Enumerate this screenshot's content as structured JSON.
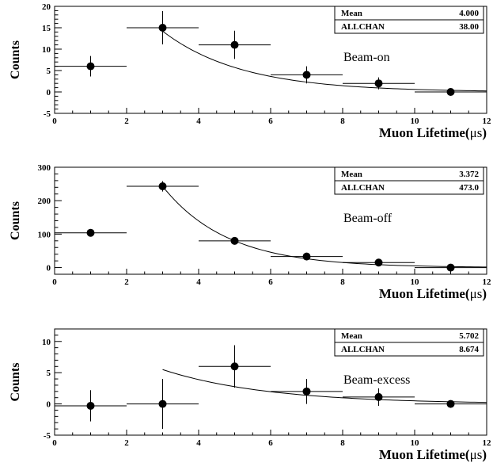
{
  "chart_data": [
    {
      "type": "scatter",
      "panel_label": "Beam-on",
      "xlabel_main": "Muon Lifetime(",
      "xlabel_unit": "μs",
      "xlabel_close": ")",
      "ylabel": "Counts",
      "xlim": [
        0,
        12
      ],
      "ylim": [
        -5,
        20
      ],
      "xticks": [
        0,
        2,
        4,
        6,
        8,
        10,
        12
      ],
      "yticks": [
        -5,
        0,
        5,
        10,
        15,
        20
      ],
      "stats": [
        {
          "name": "Mean",
          "value": "4.000"
        },
        {
          "name": "ALLCHAN",
          "value": "38.00"
        }
      ],
      "points": [
        {
          "x": 1,
          "y": 6,
          "xerr": 1,
          "yerr": 2.4
        },
        {
          "x": 3,
          "y": 15,
          "xerr": 1,
          "yerr": 3.9
        },
        {
          "x": 5,
          "y": 11,
          "xerr": 1,
          "yerr": 3.3
        },
        {
          "x": 7,
          "y": 4,
          "xerr": 1,
          "yerr": 2
        },
        {
          "x": 9,
          "y": 2,
          "xerr": 1,
          "yerr": 1.4
        },
        {
          "x": 11,
          "y": 0,
          "xerr": 1,
          "yerr": 0
        }
      ],
      "fit": {
        "type": "exponential",
        "x_start": 3,
        "x_end": 12,
        "amplitude": 14.2,
        "tau": 2.2
      }
    },
    {
      "type": "scatter",
      "panel_label": "Beam-off",
      "xlabel_main": "Muon Lifetime(",
      "xlabel_unit": "μs",
      "xlabel_close": ")",
      "ylabel": "Counts",
      "xlim": [
        0,
        12
      ],
      "ylim": [
        -20,
        300
      ],
      "xticks": [
        0,
        2,
        4,
        6,
        8,
        10,
        12
      ],
      "yticks": [
        0,
        100,
        200,
        300
      ],
      "stats": [
        {
          "name": "Mean",
          "value": "3.372"
        },
        {
          "name": "ALLCHAN",
          "value": "473.0"
        }
      ],
      "points": [
        {
          "x": 1,
          "y": 104,
          "xerr": 1,
          "yerr": 10
        },
        {
          "x": 3,
          "y": 243,
          "xerr": 1,
          "yerr": 15.6
        },
        {
          "x": 5,
          "y": 80,
          "xerr": 1,
          "yerr": 9
        },
        {
          "x": 7,
          "y": 33,
          "xerr": 1,
          "yerr": 5.7
        },
        {
          "x": 9,
          "y": 15,
          "xerr": 1,
          "yerr": 3.9
        },
        {
          "x": 11,
          "y": 0,
          "xerr": 1,
          "yerr": 0
        }
      ],
      "fit": {
        "type": "exponential",
        "x_start": 3,
        "x_end": 12,
        "amplitude": 243,
        "tau": 1.8
      }
    },
    {
      "type": "scatter",
      "panel_label": "Beam-excess",
      "xlabel_main": "Muon Lifetime(",
      "xlabel_unit": "μs",
      "xlabel_close": ")",
      "ylabel": "Counts",
      "xlim": [
        0,
        12
      ],
      "ylim": [
        -5,
        12
      ],
      "xticks": [
        0,
        2,
        4,
        6,
        8,
        10,
        12
      ],
      "yticks": [
        -5,
        0,
        5,
        10
      ],
      "stats": [
        {
          "name": "Mean",
          "value": "5.702"
        },
        {
          "name": "ALLCHAN",
          "value": "8.674"
        }
      ],
      "points": [
        {
          "x": 1,
          "y": -0.3,
          "xerr": 1,
          "yerr": 2.5
        },
        {
          "x": 3,
          "y": 0,
          "xerr": 1,
          "yerr": 4
        },
        {
          "x": 5,
          "y": 6,
          "xerr": 1,
          "yerr": 3.4
        },
        {
          "x": 7,
          "y": 2,
          "xerr": 1,
          "yerr": 2
        },
        {
          "x": 9,
          "y": 1.1,
          "xerr": 1,
          "yerr": 1.4
        },
        {
          "x": 11,
          "y": 0,
          "xerr": 1,
          "yerr": 0
        }
      ],
      "fit": {
        "type": "exponential",
        "x_start": 3,
        "x_end": 12,
        "amplitude": 5.5,
        "tau": 2.9
      }
    }
  ]
}
